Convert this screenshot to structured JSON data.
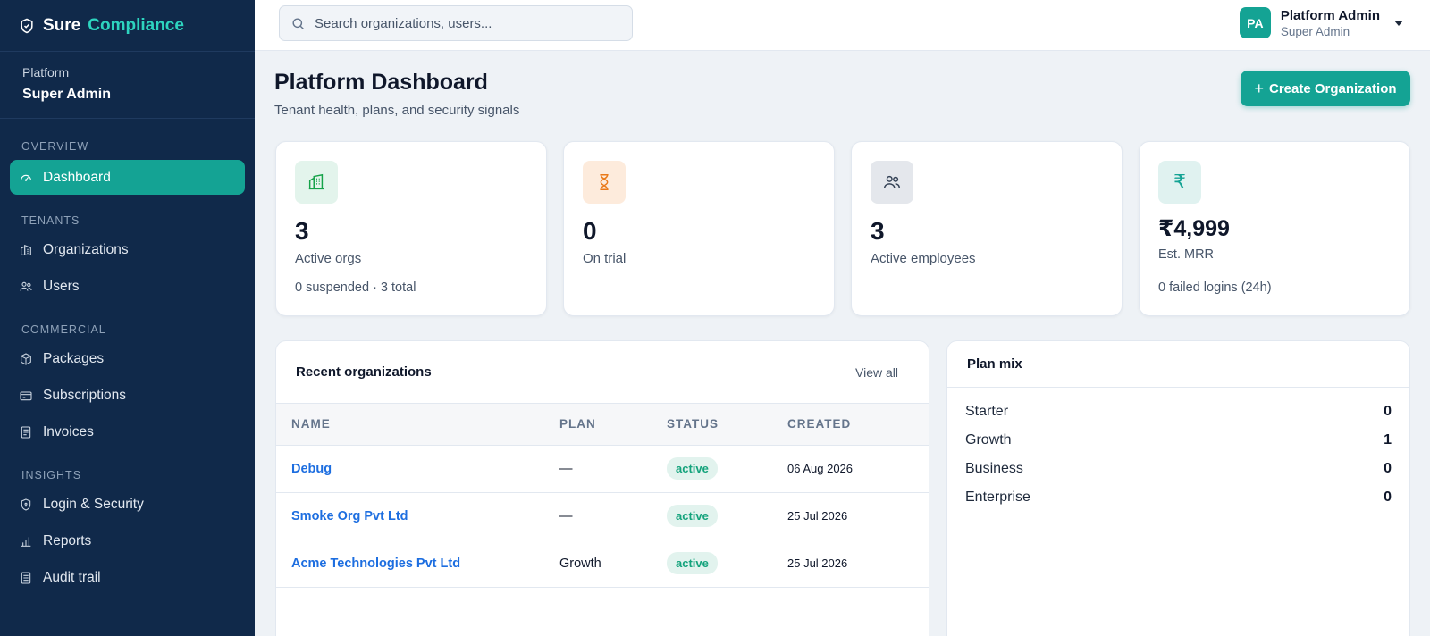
{
  "brand": {
    "name_a": "Sure",
    "name_b": "Compliance"
  },
  "context": {
    "label": "Platform",
    "value": "Super Admin"
  },
  "nav": [
    {
      "section": "OVERVIEW",
      "items": [
        {
          "label": "Dashboard",
          "icon": "gauge-icon",
          "active": true
        }
      ]
    },
    {
      "section": "TENANTS",
      "items": [
        {
          "label": "Organizations",
          "icon": "building-icon"
        },
        {
          "label": "Users",
          "icon": "users-icon"
        }
      ]
    },
    {
      "section": "COMMERCIAL",
      "items": [
        {
          "label": "Packages",
          "icon": "package-icon"
        },
        {
          "label": "Subscriptions",
          "icon": "card-icon"
        },
        {
          "label": "Invoices",
          "icon": "invoice-icon"
        }
      ]
    },
    {
      "section": "INSIGHTS",
      "items": [
        {
          "label": "Login & Security",
          "icon": "shield-icon"
        },
        {
          "label": "Reports",
          "icon": "bar-chart-icon"
        },
        {
          "label": "Audit trail",
          "icon": "audit-icon"
        }
      ]
    }
  ],
  "search": {
    "placeholder": "Search organizations, users..."
  },
  "user": {
    "initials": "PA",
    "name": "Platform Admin",
    "role": "Super Admin"
  },
  "page": {
    "title": "Platform Dashboard",
    "subtitle": "Tenant health, plans, and security signals",
    "create_label": "Create Organization"
  },
  "stats": [
    {
      "value": "3",
      "label": "Active orgs",
      "foot": "0 suspended · 3 total",
      "icon": "building-icon",
      "color": "#16a34a",
      "bg": "#e3f4ec"
    },
    {
      "value": "0",
      "label": "On trial",
      "foot": "",
      "icon": "hourglass-icon",
      "color": "#ea7a1a",
      "bg": "#fdebdc"
    },
    {
      "value": "3",
      "label": "Active employees",
      "foot": "",
      "icon": "users-icon",
      "color": "#334155",
      "bg": "#e4e7ec"
    },
    {
      "value": "₹4,999",
      "label": "Est. MRR",
      "foot": "0 failed logins (24h)",
      "icon": "rupee-icon",
      "color": "#14a394",
      "bg": "#e0f2f0"
    }
  ],
  "recent": {
    "title": "Recent organizations",
    "view_all": "View all",
    "columns": [
      "NAME",
      "PLAN",
      "STATUS",
      "CREATED"
    ],
    "rows": [
      {
        "name": "Debug",
        "plan": "—",
        "status": "active",
        "created": "06 Aug 2026"
      },
      {
        "name": "Smoke Org Pvt Ltd",
        "plan": "—",
        "status": "active",
        "created": "25 Jul 2026"
      },
      {
        "name": "Acme Technologies Pvt Ltd",
        "plan": "Growth",
        "status": "active",
        "created": "25 Jul 2026"
      }
    ]
  },
  "plan_mix": {
    "title": "Plan mix",
    "rows": [
      {
        "label": "Starter",
        "count": "0"
      },
      {
        "label": "Growth",
        "count": "1"
      },
      {
        "label": "Business",
        "count": "0"
      },
      {
        "label": "Enterprise",
        "count": "0"
      }
    ]
  }
}
